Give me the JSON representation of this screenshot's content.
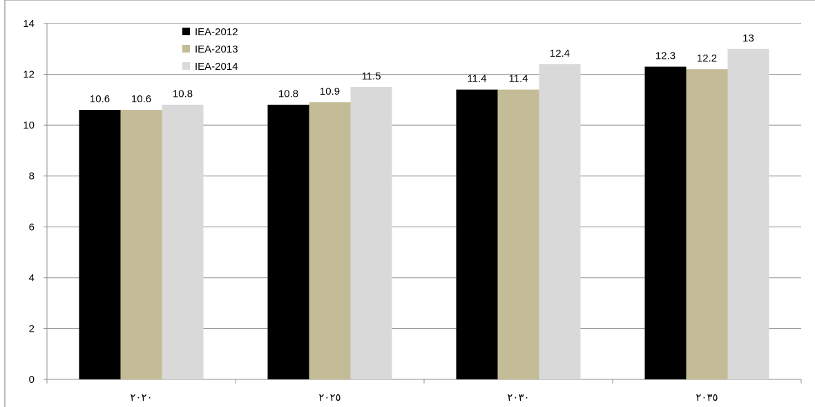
{
  "chart_data": {
    "type": "bar",
    "title": "",
    "xlabel": "",
    "ylabel": "",
    "categories": [
      "٢٠٢٠",
      "٢٠٢٥",
      "٢٠٣٠",
      "٢٠٣٥"
    ],
    "series": [
      {
        "name": "IEA-2012",
        "color": "#000000",
        "values": [
          10.6,
          10.8,
          11.4,
          12.3
        ]
      },
      {
        "name": "IEA-2013",
        "color": "#c4bc96",
        "values": [
          10.6,
          10.9,
          11.4,
          12.2
        ]
      },
      {
        "name": "IEA-2014",
        "color": "#d9d9d9",
        "values": [
          10.8,
          11.5,
          12.4,
          13
        ]
      }
    ],
    "ylim": [
      0,
      14
    ],
    "yticks": [
      0,
      2,
      4,
      6,
      8,
      10,
      12,
      14
    ],
    "grid": true,
    "legend_position": "top-left"
  }
}
